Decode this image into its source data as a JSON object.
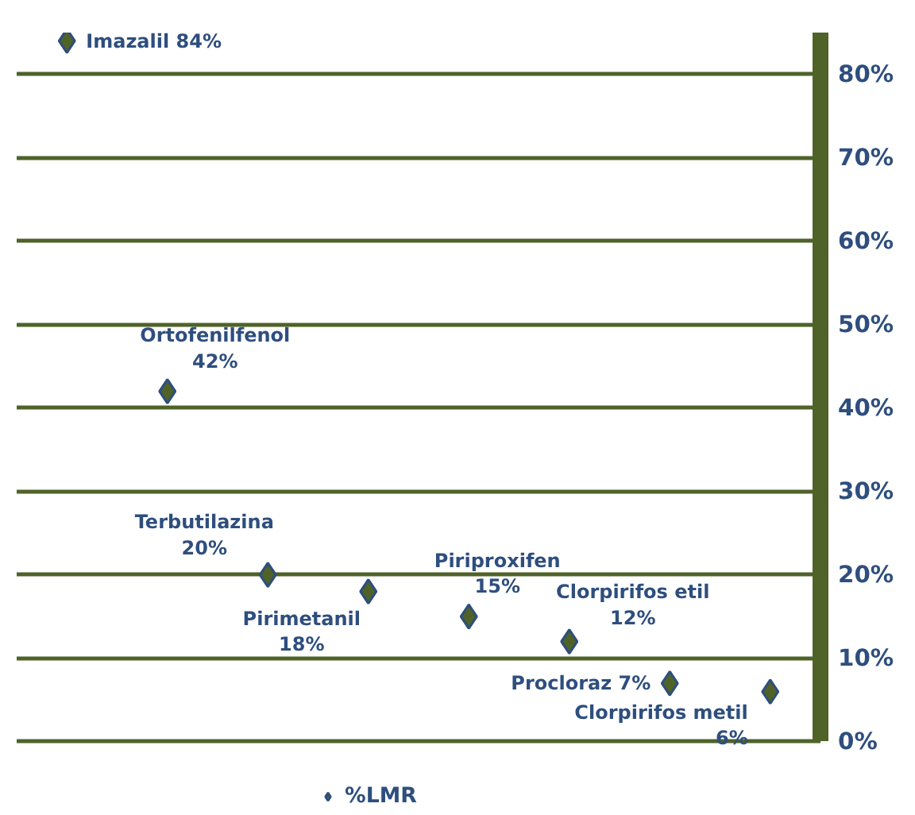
{
  "chart_data": {
    "type": "scatter",
    "categories": [
      null,
      null,
      null,
      null,
      null,
      null,
      null,
      null
    ],
    "series": [
      {
        "name": "%LMR",
        "color": "#4f6228",
        "values": [
          84,
          42,
          20,
          18,
          15,
          12,
          7,
          6
        ],
        "value_labels": [
          "Imazalil 84%",
          "Ortofenilfenol\n42%",
          "Terbutilazina\n20%",
          "Pirimetanil\n18%",
          "Piriproxifen\n15%",
          "Clorpirifos etil\n12%",
          "Procloraz 7%",
          "Clorpirifos metil\n6%"
        ]
      }
    ],
    "ylim": [
      0,
      85
    ],
    "yticks": [
      {
        "value": 0,
        "label": "0%"
      },
      {
        "value": 10,
        "label": "10%"
      },
      {
        "value": 20,
        "label": "20%"
      },
      {
        "value": 30,
        "label": "30%"
      },
      {
        "value": 40,
        "label": "40%"
      },
      {
        "value": 50,
        "label": "50%"
      },
      {
        "value": 60,
        "label": "60%"
      },
      {
        "value": 70,
        "label": "70%"
      },
      {
        "value": 80,
        "label": "80%"
      }
    ],
    "grid": "y",
    "legend": "bottom",
    "marker": "diamond"
  }
}
